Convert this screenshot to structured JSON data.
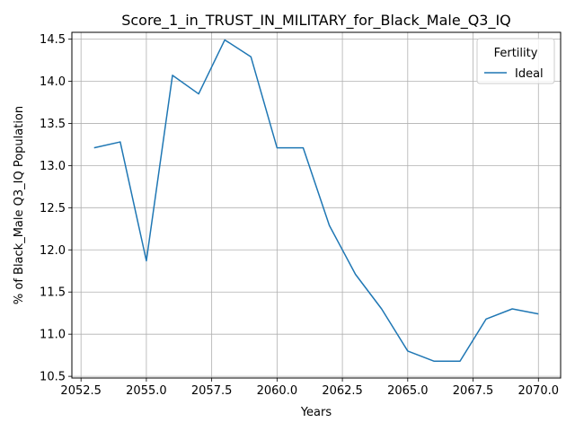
{
  "chart_data": {
    "type": "line",
    "title": "Score_1_in_TRUST_IN_MILITARY_for_Black_Male_Q3_IQ",
    "xlabel": "Years",
    "ylabel": "% of Black_Male Q3_IQ Population",
    "xlim": [
      2052.15,
      2070.85
    ],
    "ylim": [
      10.48,
      14.58
    ],
    "grid": true,
    "x_ticks": [
      "2052.5",
      "2055.0",
      "2057.5",
      "2060.0",
      "2062.5",
      "2065.0",
      "2067.5",
      "2070.0"
    ],
    "x_tick_values": [
      2052.5,
      2055.0,
      2057.5,
      2060.0,
      2062.5,
      2065.0,
      2067.5,
      2070.0
    ],
    "y_ticks": [
      "10.5",
      "11.0",
      "11.5",
      "12.0",
      "12.5",
      "13.0",
      "13.5",
      "14.0",
      "14.5"
    ],
    "y_tick_values": [
      10.5,
      11.0,
      11.5,
      12.0,
      12.5,
      13.0,
      13.5,
      14.0,
      14.5
    ],
    "legend": {
      "title": "Fertility",
      "placement": "upper right"
    },
    "series": [
      {
        "name": "Ideal",
        "color": "#1f77b4",
        "x": [
          2053,
          2054,
          2055,
          2056,
          2057,
          2058,
          2059,
          2060,
          2061,
          2062,
          2063,
          2064,
          2065,
          2066,
          2067,
          2068,
          2069,
          2070
        ],
        "y": [
          13.21,
          13.28,
          11.87,
          14.07,
          13.85,
          14.49,
          14.29,
          13.21,
          13.21,
          12.29,
          11.71,
          11.3,
          10.8,
          10.68,
          10.68,
          11.18,
          11.3,
          11.24
        ]
      }
    ]
  }
}
